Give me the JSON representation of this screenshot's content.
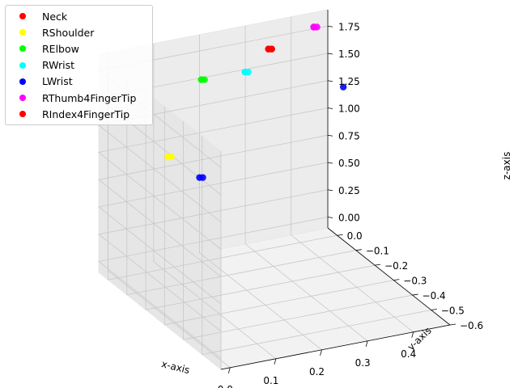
{
  "chart_data": {
    "type": "scatter",
    "projection": "3d",
    "title": "",
    "xlabel": "x-axis",
    "ylabel": "y-axis",
    "zlabel": "z-axis",
    "xlim": [
      -0.02,
      0.48
    ],
    "ylim": [
      -0.6,
      0.05
    ],
    "zlim": [
      -0.1,
      1.9
    ],
    "xticks": [
      "0.0",
      "0.1",
      "0.2",
      "0.3",
      "0.4"
    ],
    "yticks": [
      "0.0",
      "−0.1",
      "−0.2",
      "−0.3",
      "−0.4",
      "−0.5",
      "−0.6"
    ],
    "zticks": [
      "0.00",
      "0.25",
      "0.50",
      "0.75",
      "1.00",
      "1.25",
      "1.50",
      "1.75"
    ],
    "grid": true,
    "legend_position": "top-left",
    "series": [
      {
        "name": "Neck",
        "color": "#ff0000",
        "points": [
          [
            0.33,
            0.0,
            1.73
          ],
          [
            0.33,
            0.0,
            1.73
          ],
          [
            0.33,
            0.0,
            1.73
          ]
        ]
      },
      {
        "name": "RShoulder",
        "color": "#ffff00",
        "points": [
          [
            0.0,
            -0.27,
            1.38
          ],
          [
            0.0,
            -0.27,
            1.38
          ],
          [
            0.0,
            -0.27,
            1.38
          ]
        ]
      },
      {
        "name": "RElbow",
        "color": "#00ff00",
        "points": [
          [
            0.13,
            -0.13,
            1.79
          ],
          [
            0.13,
            -0.13,
            1.79
          ],
          [
            0.13,
            -0.13,
            1.79
          ]
        ]
      },
      {
        "name": "RWrist",
        "color": "#00ffff",
        "points": [
          [
            0.25,
            -0.07,
            1.68
          ],
          [
            0.25,
            -0.07,
            1.68
          ],
          [
            0.25,
            -0.07,
            1.68
          ]
        ]
      },
      {
        "name": "LWrist",
        "color": "#0000ff",
        "points": [
          [
            0.2,
            0.05,
            0.59
          ],
          [
            0.2,
            0.05,
            0.59
          ],
          [
            0.44,
            -0.13,
            1.47
          ]
        ]
      },
      {
        "name": "RThumb4FingerTip",
        "color": "#ff00ff",
        "points": [
          [
            0.4,
            -0.07,
            1.97
          ],
          [
            0.4,
            -0.07,
            1.97
          ],
          [
            0.4,
            -0.07,
            1.97
          ]
        ]
      },
      {
        "name": "RIndex4FingerTip",
        "color": "#ff0000",
        "points": [
          [
            0.33,
            0.0,
            1.73
          ],
          [
            0.33,
            0.0,
            1.73
          ],
          [
            0.33,
            0.0,
            1.73
          ]
        ]
      }
    ]
  }
}
